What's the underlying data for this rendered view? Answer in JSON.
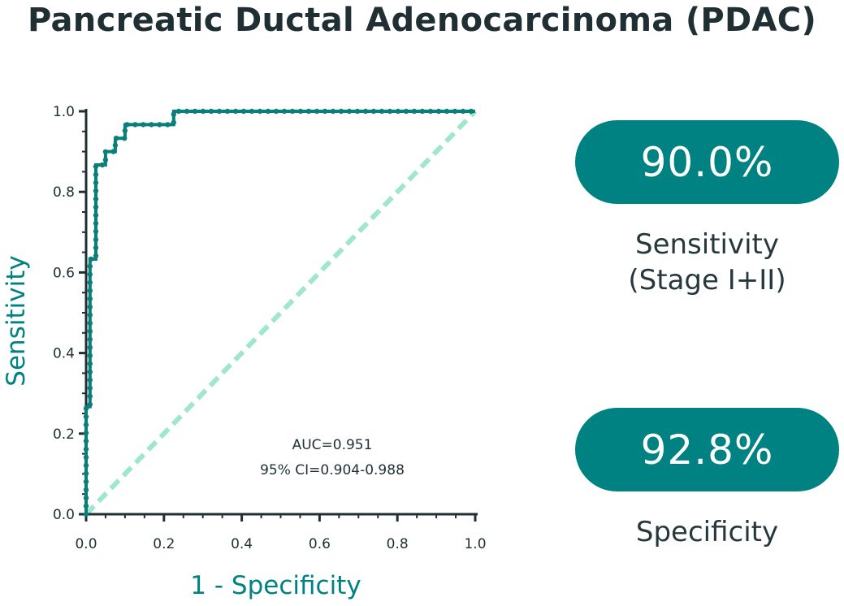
{
  "title": "Pancreatic Ductal Adenocarcinoma (PDAC)",
  "colors": {
    "roc": "#0a7f7a",
    "diagonal": "#9fe6cf",
    "axis": "#1f2f33",
    "accent": "#008282"
  },
  "stats": [
    {
      "value": "90.0%",
      "label_line1": "Sensitivity",
      "label_line2": "(Stage I+II)"
    },
    {
      "value": "92.8%",
      "label_line1": "Specificity",
      "label_line2": ""
    }
  ],
  "chart_data": {
    "type": "line",
    "title": "",
    "xlabel": "1 - Specificity",
    "ylabel": "Sensitivity",
    "xlim": [
      0,
      1
    ],
    "ylim": [
      0,
      1
    ],
    "x_ticks": [
      "0.0",
      "0.2",
      "0.4",
      "0.6",
      "0.8",
      "1.0"
    ],
    "y_ticks": [
      "0.0",
      "0.2",
      "0.4",
      "0.6",
      "0.8",
      "1.0"
    ],
    "grid": false,
    "annotation": [
      "AUC=0.951",
      "95% CI=0.904-0.988"
    ],
    "series": [
      {
        "style": "step",
        "x": [
          0.0,
          0.0,
          0.01,
          0.01,
          0.025,
          0.025,
          0.05,
          0.05,
          0.075,
          0.075,
          0.1,
          0.1,
          0.225,
          0.225,
          0.45,
          0.45,
          1.0
        ],
        "y": [
          0.0,
          0.267,
          0.267,
          0.633,
          0.633,
          0.867,
          0.867,
          0.9,
          0.9,
          0.933,
          0.933,
          0.967,
          0.967,
          1.0,
          1.0,
          1.0,
          1.0
        ]
      },
      {
        "style": "dashed-reference",
        "x": [
          0,
          1
        ],
        "y": [
          0,
          1
        ]
      }
    ]
  }
}
